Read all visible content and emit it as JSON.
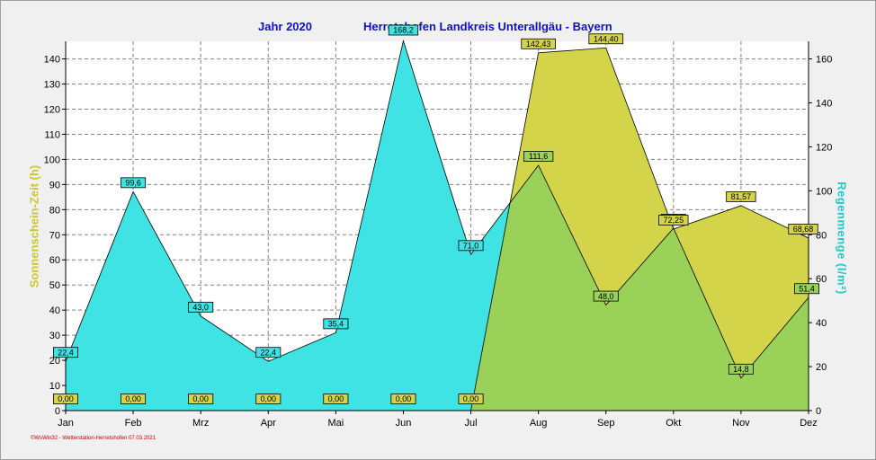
{
  "header": {
    "year_label": "Jahr  2020",
    "location_label": "Herretshofen Landkreis Unterallgäu - Bayern"
  },
  "footer": {
    "text": "©WsWin32 - Wetterstation-Herretshofen 07.03.2021"
  },
  "colors": {
    "sunshine": "#d4d44a",
    "rain": "#3fe3e3",
    "overlap": "#9ad259",
    "title": "#1010c8"
  },
  "chart_data": {
    "type": "area",
    "categories": [
      "Jan",
      "Feb",
      "Mrz",
      "Apr",
      "Mai",
      "Jun",
      "Jul",
      "Aug",
      "Sep",
      "Okt",
      "Nov",
      "Dez"
    ],
    "ylabel_left": "Sonnenschein-Zeit  (h)",
    "ylabel_right": "Regenmenge   (l/m²)",
    "ylim_left": [
      0,
      147
    ],
    "ylim_right": [
      0,
      168
    ],
    "yticks_left": [
      0,
      10,
      20,
      30,
      40,
      50,
      60,
      70,
      80,
      90,
      100,
      110,
      120,
      130,
      140
    ],
    "yticks_right": [
      0,
      20,
      40,
      60,
      80,
      100,
      120,
      140,
      160
    ],
    "grid": true,
    "series": [
      {
        "name": "Sonnenschein-Zeit",
        "axis": "left",
        "values": [
          0,
          0,
          0,
          0,
          0,
          0,
          0,
          142.43,
          144.4,
          72.25,
          81.57,
          68.68
        ],
        "labels": [
          "0,00",
          "0,00",
          "0,00",
          "0,00",
          "0,00",
          "0,00",
          "0,00",
          "142,43",
          "144,40",
          "72,25",
          "81,57",
          "68,68"
        ]
      },
      {
        "name": "Regenmenge",
        "axis": "right",
        "values": [
          22.4,
          99.6,
          43.0,
          22.4,
          35.4,
          168.2,
          71.0,
          111.6,
          48.0,
          83.0,
          14.8,
          51.4
        ],
        "labels": [
          "22,4",
          "99,6",
          "43,0",
          "22,4",
          "35,4",
          "168,2",
          "71,0",
          "111,6",
          "48,0",
          "83,0",
          "14,8",
          "51,4"
        ]
      }
    ]
  }
}
